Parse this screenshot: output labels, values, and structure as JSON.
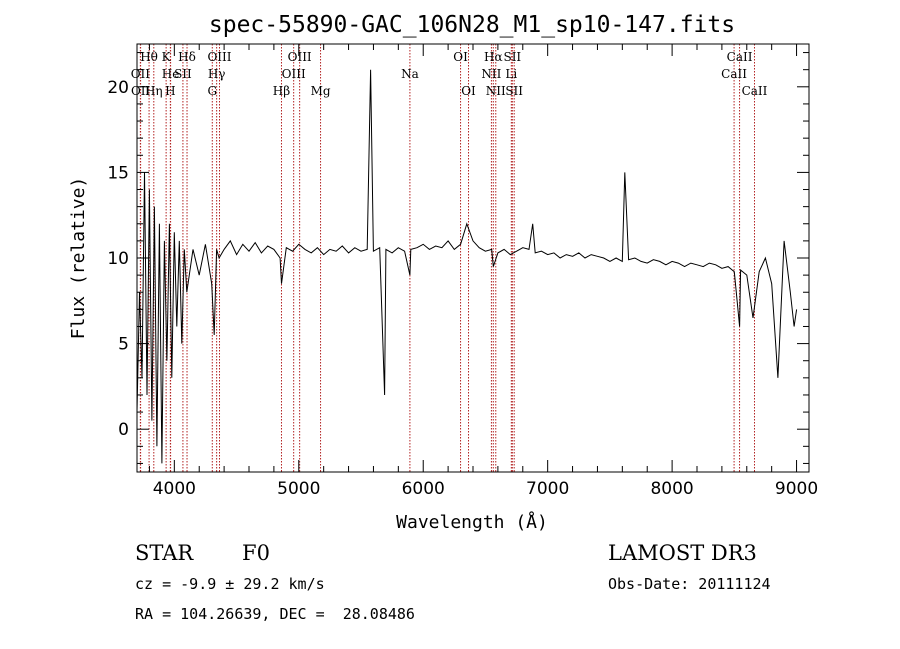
{
  "chart_data": {
    "type": "line",
    "title": "spec-55890-GAC_106N28_M1_sp10-147.fits",
    "xlabel": "Wavelength (Å)",
    "ylabel": "Flux (relative)",
    "xlim": [
      3700,
      9100
    ],
    "ylim": [
      -2.5,
      22.5
    ],
    "xticks": [
      "4000",
      "5000",
      "6000",
      "7000",
      "8000",
      "9000"
    ],
    "yticks": [
      "0",
      "5",
      "10",
      "15",
      "20"
    ],
    "grid": false,
    "line_color": "#000000",
    "marker_color": "#b22222",
    "series": [
      {
        "x": [
          3700,
          3720,
          3740,
          3760,
          3780,
          3800,
          3820,
          3840,
          3860,
          3880,
          3900,
          3920,
          3940,
          3960,
          3980,
          4000,
          4020,
          4040,
          4060,
          4080,
          4100,
          4150,
          4200,
          4250,
          4300,
          4320,
          4340,
          4360,
          4400,
          4450,
          4500,
          4550,
          4600,
          4650,
          4700,
          4750,
          4800,
          4850,
          4861,
          4900,
          4950,
          5000,
          5050,
          5100,
          5150,
          5200,
          5250,
          5300,
          5350,
          5400,
          5450,
          5500,
          5550,
          5577,
          5600,
          5650,
          5690,
          5700,
          5750,
          5800,
          5850,
          5893,
          5900,
          5950,
          6000,
          6050,
          6100,
          6150,
          6200,
          6250,
          6300,
          6350,
          6400,
          6450,
          6500,
          6550,
          6563,
          6600,
          6650,
          6700,
          6750,
          6800,
          6850,
          6880,
          6900,
          6950,
          7000,
          7050,
          7100,
          7150,
          7200,
          7250,
          7300,
          7350,
          7400,
          7450,
          7500,
          7550,
          7600,
          7620,
          7650,
          7700,
          7750,
          7800,
          7850,
          7900,
          7950,
          8000,
          8050,
          8100,
          8150,
          8200,
          8250,
          8300,
          8350,
          8400,
          8450,
          8500,
          8542,
          8550,
          8600,
          8650,
          8700,
          8750,
          8800,
          8850,
          8900,
          8950,
          8980,
          9000
        ],
        "y": [
          1.0,
          8.0,
          3.0,
          15.0,
          2.0,
          14.0,
          0.5,
          13.0,
          -1.0,
          12.0,
          -2.0,
          11.0,
          4.0,
          12.0,
          3.0,
          11.5,
          6.0,
          11.0,
          5.0,
          10.5,
          8.0,
          10.5,
          9.0,
          10.8,
          8.5,
          5.5,
          10.5,
          10.0,
          10.5,
          11.0,
          10.2,
          10.8,
          10.4,
          10.9,
          10.3,
          10.7,
          10.5,
          10.0,
          8.5,
          10.6,
          10.4,
          10.8,
          10.5,
          10.3,
          10.6,
          10.2,
          10.5,
          10.4,
          10.7,
          10.3,
          10.6,
          10.4,
          10.5,
          21.0,
          10.4,
          10.6,
          2.0,
          10.5,
          10.3,
          10.6,
          10.4,
          9.0,
          10.5,
          10.6,
          10.8,
          10.5,
          10.7,
          10.6,
          11.0,
          10.5,
          10.8,
          12.0,
          11.0,
          10.6,
          10.4,
          10.5,
          9.5,
          10.3,
          10.5,
          10.2,
          10.4,
          10.6,
          10.5,
          12.0,
          10.3,
          10.4,
          10.2,
          10.3,
          10.0,
          10.2,
          10.1,
          10.3,
          10.0,
          10.2,
          10.1,
          10.0,
          9.8,
          10.0,
          9.8,
          15.0,
          9.9,
          10.0,
          9.8,
          9.7,
          9.9,
          9.8,
          9.6,
          9.8,
          9.7,
          9.5,
          9.7,
          9.6,
          9.5,
          9.7,
          9.6,
          9.4,
          9.5,
          9.2,
          6.0,
          9.3,
          9.0,
          6.5,
          9.2,
          10.0,
          8.5,
          3.0,
          11.0,
          8.0,
          6.0,
          7.0
        ]
      }
    ],
    "lines": [
      {
        "name": "Hθ",
        "x": 3797,
        "row": 1
      },
      {
        "name": "K",
        "x": 3934,
        "row": 1
      },
      {
        "name": "Hδ",
        "x": 4102,
        "row": 1
      },
      {
        "name": "OII",
        "x": 3727,
        "row": 2
      },
      {
        "name": "He",
        "x": 3970,
        "row": 2
      },
      {
        "name": "SII",
        "x": 4069,
        "row": 2
      },
      {
        "name": "OIII",
        "x": 4363,
        "row": 1
      },
      {
        "name": "Hγ",
        "x": 4340,
        "row": 2
      },
      {
        "name": "OII",
        "x": 3729,
        "row": 3
      },
      {
        "name": "Hη",
        "x": 3835,
        "row": 3
      },
      {
        "name": "H",
        "x": 3968,
        "row": 3
      },
      {
        "name": "G",
        "x": 4305,
        "row": 3
      },
      {
        "name": "OIII",
        "x": 5007,
        "row": 1
      },
      {
        "name": "OIII",
        "x": 4959,
        "row": 2
      },
      {
        "name": "Hβ",
        "x": 4861,
        "row": 3
      },
      {
        "name": "Mg",
        "x": 5175,
        "row": 3
      },
      {
        "name": "Na",
        "x": 5893,
        "row": 2
      },
      {
        "name": "OI",
        "x": 6300,
        "row": 1
      },
      {
        "name": "OI",
        "x": 6364,
        "row": 3
      },
      {
        "name": "Hα",
        "x": 6563,
        "row": 1
      },
      {
        "name": "SII",
        "x": 6716,
        "row": 1
      },
      {
        "name": "NII",
        "x": 6548,
        "row": 2
      },
      {
        "name": "Li",
        "x": 6708,
        "row": 2
      },
      {
        "name": "NII",
        "x": 6583,
        "row": 3
      },
      {
        "name": "SII",
        "x": 6731,
        "row": 3
      },
      {
        "name": "CaII",
        "x": 8542,
        "row": 1
      },
      {
        "name": "CaII",
        "x": 8498,
        "row": 2
      },
      {
        "name": "CaII",
        "x": 8662,
        "row": 3
      }
    ]
  },
  "info": {
    "object_class": "STAR",
    "subclass": "F0",
    "survey": "LAMOST DR3",
    "redshift": "cz = -9.9 ± 29.2 km/s",
    "obs_date": "Obs-Date: 20111124",
    "coords": "RA = 104.26639, DEC =  28.08486"
  }
}
